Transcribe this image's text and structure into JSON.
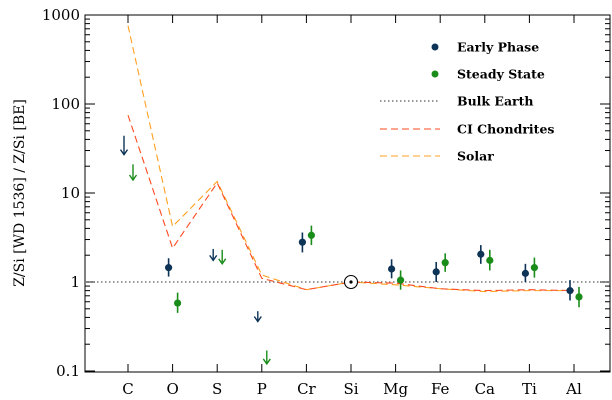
{
  "chart_data": {
    "type": "scatter",
    "title": "",
    "xlabel": "",
    "ylabel": "Z/Si [WD 1536] / Z/Si [BE]",
    "yscale": "log",
    "ylim": [
      0.1,
      1000
    ],
    "yticks": [
      "0.1",
      "1",
      "10",
      "100",
      "1000"
    ],
    "categories": [
      "C",
      "O",
      "S",
      "P",
      "Cr",
      "Si",
      "Mg",
      "Fe",
      "Ca",
      "Ti",
      "Al"
    ],
    "legend_position": "top-right",
    "colors": {
      "early": "#0d3357",
      "steady": "#1a8c1a",
      "bulk": "#777777",
      "ci": "#ff4a1f",
      "solar": "#ffa020"
    },
    "series": [
      {
        "name": "Early Phase",
        "kind": "points",
        "values": [
          null,
          1.45,
          null,
          null,
          2.8,
          1.0,
          1.4,
          1.3,
          2.05,
          1.25,
          0.8
        ],
        "err_low": [
          null,
          1.15,
          null,
          null,
          2.15,
          null,
          1.1,
          1.0,
          1.6,
          1.0,
          0.62
        ],
        "err_high": [
          null,
          1.85,
          null,
          null,
          3.6,
          null,
          1.8,
          1.68,
          2.6,
          1.6,
          1.05
        ],
        "upper_limits": [
          44,
          null,
          2.35,
          null,
          null,
          null,
          null,
          null,
          null,
          null,
          null
        ],
        "limit_tail": [
          27,
          null,
          1.75,
          0.36,
          null,
          null,
          null,
          null,
          null,
          null,
          null
        ],
        "limit_head": [
          44,
          null,
          2.35,
          0.47,
          null,
          null,
          null,
          null,
          null,
          null,
          null
        ]
      },
      {
        "name": "Steady State",
        "kind": "points",
        "values": [
          null,
          0.58,
          null,
          null,
          3.35,
          null,
          1.05,
          1.65,
          1.75,
          1.45,
          0.68
        ],
        "err_low": [
          null,
          0.45,
          null,
          null,
          2.6,
          null,
          0.82,
          1.3,
          1.35,
          1.12,
          0.52
        ],
        "err_high": [
          null,
          0.76,
          null,
          null,
          4.3,
          null,
          1.35,
          2.1,
          2.3,
          1.88,
          0.88
        ],
        "limit_tail": [
          14,
          null,
          1.6,
          0.12,
          null,
          null,
          null,
          null,
          null,
          null,
          null
        ],
        "limit_head": [
          21,
          null,
          2.3,
          0.17,
          null,
          null,
          null,
          null,
          null,
          null,
          null
        ]
      },
      {
        "name": "Bulk Earth",
        "kind": "line",
        "style": "dotted",
        "values": [
          1,
          1,
          1,
          1,
          1,
          1,
          1,
          1,
          1,
          1,
          1
        ]
      },
      {
        "name": "CI Chondrites",
        "kind": "line",
        "style": "dashed",
        "values": [
          75,
          2.4,
          13,
          1.1,
          0.82,
          1.0,
          0.97,
          0.84,
          0.8,
          0.82,
          0.8
        ]
      },
      {
        "name": "Solar",
        "kind": "line",
        "style": "dashed",
        "values": [
          760,
          4.2,
          13.5,
          1.2,
          0.82,
          1.0,
          0.93,
          0.84,
          0.78,
          0.8,
          0.8
        ]
      }
    ],
    "reference_point": {
      "category": "Si",
      "value": 1.0,
      "marker": "circled-dot"
    }
  }
}
